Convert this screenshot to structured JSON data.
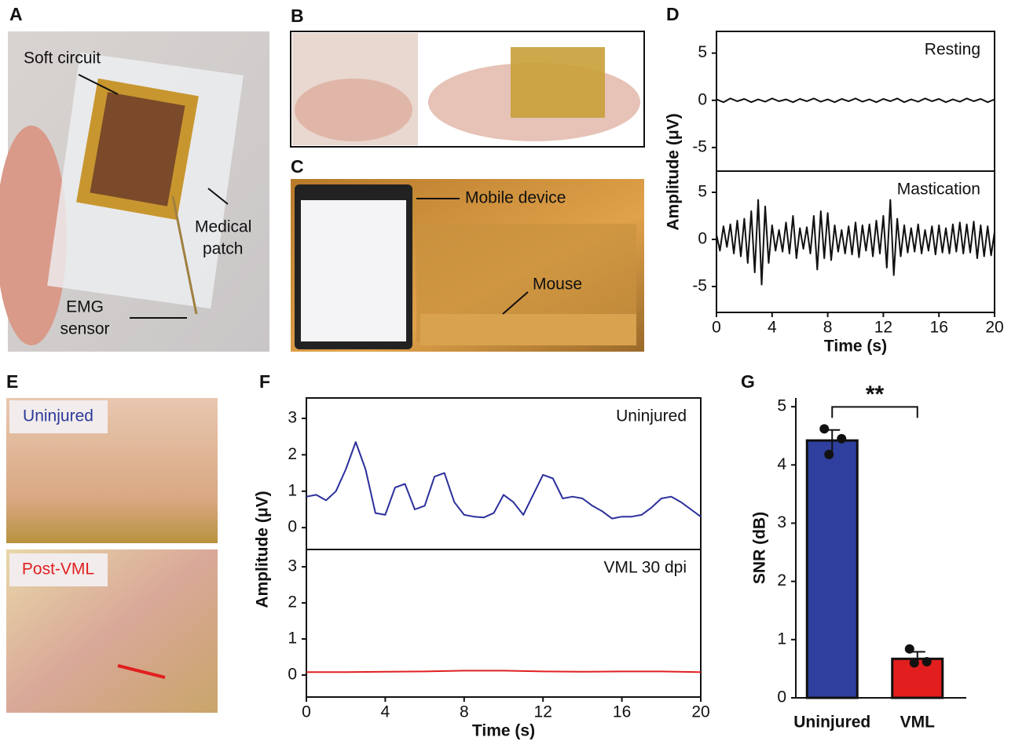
{
  "panel_labels": [
    "A",
    "B",
    "C",
    "D",
    "E",
    "F",
    "G"
  ],
  "photo_labels": {
    "a": [
      [
        "Soft circuit"
      ],
      [
        "Medical",
        "patch"
      ],
      [
        "EMG",
        "sensor"
      ]
    ],
    "c": [
      [
        "Mobile device"
      ],
      [
        "Mouse"
      ]
    ],
    "e": [
      [
        "Uninjured"
      ],
      [
        "Post-VML"
      ]
    ]
  },
  "chart_data": [
    {
      "type": "line",
      "annotation": "Resting",
      "color": "#111111",
      "x": [
        0,
        0.5,
        1,
        1.5,
        2,
        2.5,
        3,
        3.5,
        4,
        4.5,
        5,
        5.5,
        6,
        6.5,
        7,
        7.5,
        8,
        8.5,
        9,
        9.5,
        10,
        10.5,
        11,
        11.5,
        12,
        12.5,
        13,
        13.5,
        14,
        14.5,
        15,
        15.5,
        16,
        16.5,
        17,
        17.5,
        18,
        18.5,
        19,
        19.5,
        20
      ],
      "values": [
        0.1,
        -0.2,
        0.2,
        -0.1,
        0.15,
        -0.2,
        0.1,
        -0.15,
        0.2,
        -0.1,
        0.1,
        -0.2,
        0.15,
        -0.1,
        0.2,
        -0.15,
        0.1,
        -0.2,
        0.15,
        -0.1,
        0.2,
        -0.15,
        0.1,
        -0.2,
        0.15,
        -0.1,
        0.2,
        -0.2,
        0.1,
        -0.15,
        0.2,
        -0.1,
        0.15,
        -0.2,
        0.1,
        -0.15,
        0.2,
        -0.1,
        0.15,
        -0.2,
        0.1
      ],
      "xlim": [
        0,
        20
      ],
      "ylim": [
        -7.5,
        7.3
      ],
      "yticks": [
        -5,
        0,
        5
      ]
    },
    {
      "type": "line",
      "annotation": "Mastication",
      "color": "#111111",
      "xlabel": "Time (s)",
      "ylabel": "Amplitude (μV)",
      "x": [
        0,
        0.25,
        0.5,
        0.75,
        1,
        1.25,
        1.5,
        1.75,
        2,
        2.25,
        2.5,
        2.75,
        3,
        3.25,
        3.5,
        3.75,
        4,
        4.25,
        4.5,
        4.75,
        5,
        5.25,
        5.5,
        5.75,
        6,
        6.25,
        6.5,
        6.75,
        7,
        7.25,
        7.5,
        7.75,
        8,
        8.25,
        8.5,
        8.75,
        9,
        9.25,
        9.5,
        9.75,
        10,
        10.25,
        10.5,
        10.75,
        11,
        11.25,
        11.5,
        11.75,
        12,
        12.25,
        12.5,
        12.75,
        13,
        13.25,
        13.5,
        13.75,
        14,
        14.25,
        14.5,
        14.75,
        15,
        15.25,
        15.5,
        15.75,
        16,
        16.25,
        16.5,
        16.75,
        17,
        17.25,
        17.5,
        17.75,
        18,
        18.25,
        18.5,
        18.75,
        19,
        19.25,
        19.5,
        19.75,
        20
      ],
      "values": [
        0.5,
        -1.2,
        1.4,
        -0.8,
        1.6,
        -1.5,
        2.0,
        -1.8,
        2.2,
        -2.5,
        3.0,
        -3.5,
        4.2,
        -4.8,
        3.5,
        -2.5,
        1.5,
        -1.2,
        1.0,
        -1.3,
        1.8,
        -1.5,
        2.5,
        -2.0,
        1.2,
        -1.0,
        1.3,
        -1.5,
        2.5,
        -3.2,
        3.0,
        -2.0,
        2.8,
        -2.2,
        1.5,
        -1.3,
        1.0,
        -1.5,
        1.4,
        -1.6,
        1.8,
        -1.9,
        1.5,
        -1.2,
        1.6,
        -1.8,
        2.0,
        -1.5,
        2.5,
        -3.0,
        4.2,
        -3.8,
        2.2,
        -1.8,
        1.5,
        -1.4,
        1.2,
        -1.3,
        1.6,
        -1.5,
        1.0,
        -1.2,
        1.4,
        -1.6,
        1.5,
        -1.4,
        1.2,
        -1.5,
        1.6,
        -1.3,
        1.8,
        -1.5,
        1.6,
        -1.4,
        1.9,
        -2.0,
        1.5,
        -1.8,
        1.4,
        -1.7,
        0.8
      ],
      "xlim": [
        0,
        20
      ],
      "ylim": [
        -7.75,
        7.25
      ],
      "xticks": [
        0,
        4,
        8,
        12,
        16,
        20
      ],
      "yticks": [
        -5,
        0,
        5
      ]
    },
    {
      "type": "line",
      "annotation": "Uninjured",
      "color": "#2c2f9c",
      "x": [
        0,
        0.5,
        1,
        1.5,
        2,
        2.5,
        3,
        3.5,
        4,
        4.5,
        5,
        5.5,
        6,
        6.5,
        7,
        7.5,
        8,
        8.5,
        9,
        9.5,
        10,
        10.5,
        11,
        11.5,
        12,
        12.5,
        13,
        13.5,
        14,
        14.5,
        15,
        15.5,
        16,
        16.5,
        17,
        17.5,
        18,
        18.5,
        19,
        19.5,
        20
      ],
      "values": [
        0.85,
        0.9,
        0.75,
        1.0,
        1.6,
        2.35,
        1.6,
        0.4,
        0.35,
        1.1,
        1.2,
        0.5,
        0.6,
        1.4,
        1.5,
        0.7,
        0.35,
        0.3,
        0.28,
        0.4,
        0.9,
        0.7,
        0.35,
        0.9,
        1.45,
        1.35,
        0.8,
        0.85,
        0.8,
        0.6,
        0.45,
        0.25,
        0.3,
        0.3,
        0.35,
        0.55,
        0.8,
        0.85,
        0.7,
        0.5,
        0.3
      ],
      "xlim": [
        0,
        20
      ],
      "ylim": [
        -0.6,
        3.56
      ],
      "yticks": [
        0,
        1,
        2,
        3
      ]
    },
    {
      "type": "line",
      "annotation": "VML 30 dpi",
      "color": "#e02020",
      "xlabel": "Time (s)",
      "ylabel": "Amplitude (μV)",
      "x": [
        0,
        2,
        4,
        6,
        8,
        10,
        12,
        14,
        16,
        18,
        20
      ],
      "values": [
        0.08,
        0.08,
        0.09,
        0.1,
        0.12,
        0.12,
        0.1,
        0.09,
        0.1,
        0.1,
        0.08
      ],
      "xlim": [
        0,
        20
      ],
      "ylim": [
        -0.61,
        3.48
      ],
      "xticks": [
        0,
        4,
        8,
        12,
        16,
        20
      ],
      "yticks": [
        0,
        1,
        2,
        3
      ]
    },
    {
      "type": "bar",
      "ylabel": "SNR (dB)",
      "annotation": "**",
      "categories": [
        "Uninjured",
        "VML"
      ],
      "values": [
        4.42,
        0.67
      ],
      "errors": [
        0.18,
        0.12
      ],
      "points": [
        [
          4.62,
          4.45,
          4.18
        ],
        [
          0.84,
          0.62,
          0.6
        ]
      ],
      "colors": [
        "#2e3f9e",
        "#e31e1e"
      ],
      "ylim": [
        0,
        5.15
      ],
      "yticks": [
        0,
        1,
        2,
        3,
        4,
        5
      ]
    }
  ]
}
